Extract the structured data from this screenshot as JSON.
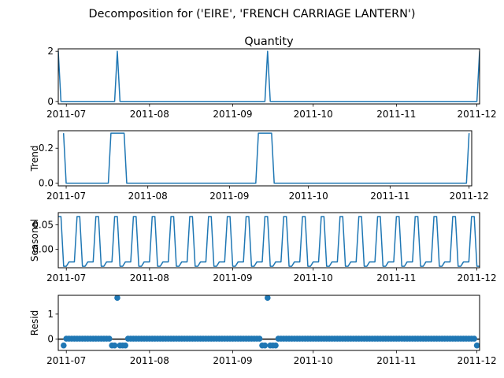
{
  "figure_title": "Decomposition for ('EIRE', 'FRENCH CARRIAGE LANTERN')",
  "colors": {
    "series": "#1f77b4",
    "axis": "#000000",
    "background": "#ffffff"
  },
  "chart_data": [
    {
      "type": "line",
      "title": "Quantity",
      "ylabel": "",
      "x_start": "2011-06-28",
      "x_end": "2011-12-02",
      "ylim": [
        -0.1,
        2.1
      ],
      "xticks": [
        {
          "date": "2011-07-01",
          "label": "2011-07"
        },
        {
          "date": "2011-08-01",
          "label": "2011-08"
        },
        {
          "date": "2011-09-01",
          "label": "2011-09"
        },
        {
          "date": "2011-10-01",
          "label": "2011-10"
        },
        {
          "date": "2011-11-01",
          "label": "2011-11"
        },
        {
          "date": "2011-12-01",
          "label": "2011-12"
        }
      ],
      "yticks": [
        {
          "value": 0,
          "label": "0"
        },
        {
          "value": 2,
          "label": "2"
        }
      ],
      "x": [
        "2011-06-28",
        "2011-06-29",
        "2011-07-19",
        "2011-07-20",
        "2011-07-21",
        "2011-09-13",
        "2011-09-14",
        "2011-09-15",
        "2011-12-01",
        "2011-12-02"
      ],
      "y": [
        2,
        0,
        0,
        2,
        0,
        0,
        2,
        0,
        0,
        2
      ]
    },
    {
      "type": "line",
      "title": "",
      "ylabel": "Trend",
      "x_start": "2011-06-28",
      "x_end": "2011-12-02",
      "ylim": [
        -0.015,
        0.3
      ],
      "xticks": [
        {
          "date": "2011-07-01",
          "label": "2011-07"
        },
        {
          "date": "2011-08-01",
          "label": "2011-08"
        },
        {
          "date": "2011-09-01",
          "label": "2011-09"
        },
        {
          "date": "2011-10-01",
          "label": "2011-10"
        },
        {
          "date": "2011-11-01",
          "label": "2011-11"
        },
        {
          "date": "2011-12-01",
          "label": "2011-12"
        }
      ],
      "yticks": [
        {
          "value": 0.0,
          "label": "0.0"
        },
        {
          "value": 0.2,
          "label": "0.2"
        }
      ],
      "x": [
        "2011-06-30",
        "2011-07-01",
        "2011-07-17",
        "2011-07-18",
        "2011-07-23",
        "2011-07-24",
        "2011-09-11",
        "2011-09-12",
        "2011-09-17",
        "2011-09-18",
        "2011-11-30",
        "2011-12-01"
      ],
      "y": [
        0.286,
        0,
        0,
        0.286,
        0.286,
        0,
        0,
        0.286,
        0.286,
        0,
        0,
        0.286
      ]
    },
    {
      "type": "line",
      "title": "",
      "ylabel": "Seasonal",
      "x_start": "2011-06-28",
      "x_end": "2011-12-02",
      "ylim": [
        -0.038,
        0.075
      ],
      "xticks": [
        {
          "date": "2011-07-01",
          "label": "2011-07"
        },
        {
          "date": "2011-08-01",
          "label": "2011-08"
        },
        {
          "date": "2011-09-01",
          "label": "2011-09"
        },
        {
          "date": "2011-10-01",
          "label": "2011-10"
        },
        {
          "date": "2011-11-01",
          "label": "2011-11"
        },
        {
          "date": "2011-12-01",
          "label": "2011-12"
        }
      ],
      "yticks": [
        {
          "value": 0.0,
          "label": "0.00"
        },
        {
          "value": 0.05,
          "label": "0.05"
        }
      ],
      "pattern_start": "2011-06-28",
      "pattern": [
        0.067,
        0.067,
        -0.035,
        -0.035,
        -0.026,
        -0.026,
        -0.026
      ]
    },
    {
      "type": "scatter",
      "title": "",
      "ylabel": "Resid",
      "x_start": "2011-06-28",
      "x_end": "2011-12-02",
      "ylim": [
        -0.45,
        1.75
      ],
      "baseline": 0,
      "xticks": [
        {
          "date": "2011-07-01",
          "label": "2011-07"
        },
        {
          "date": "2011-08-01",
          "label": "2011-08"
        },
        {
          "date": "2011-09-01",
          "label": "2011-09"
        },
        {
          "date": "2011-10-01",
          "label": "2011-10"
        },
        {
          "date": "2011-11-01",
          "label": "2011-11"
        },
        {
          "date": "2011-12-01",
          "label": "2011-12"
        }
      ],
      "yticks": [
        {
          "value": 0,
          "label": "0"
        },
        {
          "value": 1,
          "label": "1"
        }
      ],
      "x_first": "2011-06-30",
      "x_last": "2011-12-01",
      "default_value": 0.02,
      "low_value": -0.25,
      "low_ranges": [
        [
          "2011-07-18",
          "2011-07-23"
        ],
        [
          "2011-09-12",
          "2011-09-17"
        ]
      ],
      "first_value": -0.25,
      "last_value": -0.25,
      "spikes": [
        {
          "date": "2011-07-20",
          "value": 1.65
        },
        {
          "date": "2011-09-14",
          "value": 1.65
        }
      ]
    }
  ]
}
